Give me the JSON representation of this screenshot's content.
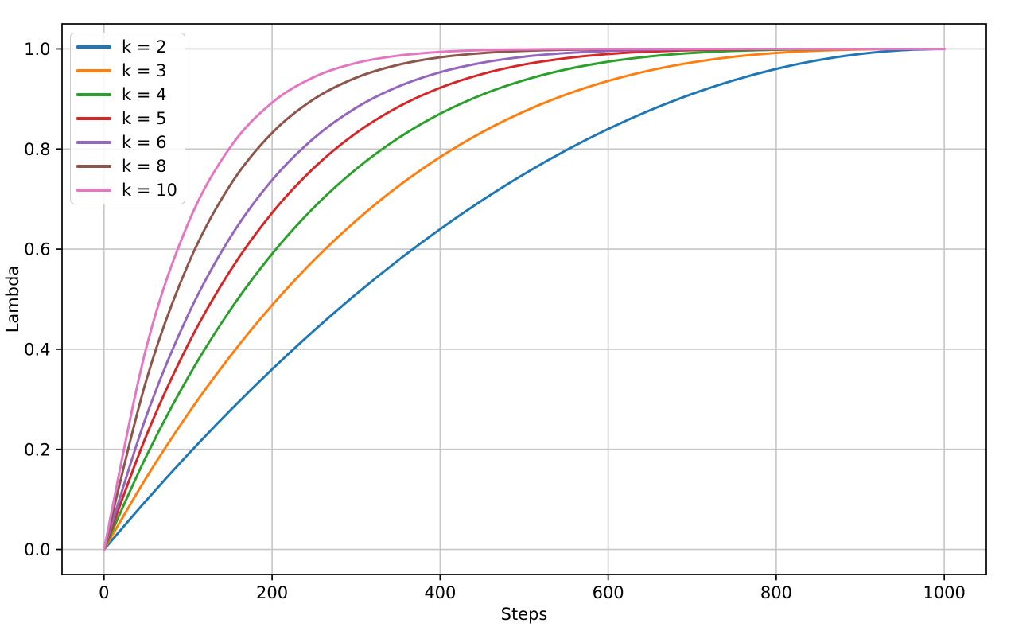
{
  "chart_data": {
    "type": "line",
    "title": "",
    "xlabel": "Steps",
    "ylabel": "Lambda",
    "xlim": [
      -50,
      1050
    ],
    "ylim": [
      -0.05,
      1.05
    ],
    "grid": true,
    "grid_color": "#c6c6c6",
    "spine_color": "#000000",
    "legend_position": "upper left",
    "formula": "lambda(t) = 1 - (1 - t/1000)^k",
    "xticks": {
      "values": [
        0,
        200,
        400,
        600,
        800,
        1000
      ],
      "labels": [
        "0",
        "200",
        "400",
        "600",
        "800",
        "1000"
      ]
    },
    "yticks": {
      "values": [
        0.0,
        0.2,
        0.4,
        0.6,
        0.8,
        1.0
      ],
      "labels": [
        "0.0",
        "0.2",
        "0.4",
        "0.6",
        "0.8",
        "1.0"
      ]
    },
    "x": [
      0,
      50,
      100,
      150,
      200,
      250,
      300,
      350,
      400,
      450,
      500,
      550,
      600,
      650,
      700,
      750,
      800,
      850,
      900,
      950,
      1000
    ],
    "series": [
      {
        "name": "k = 2",
        "k": 2,
        "color": "#1f77b4",
        "values": [
          0,
          0.0975,
          0.19,
          0.2775,
          0.36,
          0.4375,
          0.51,
          0.5775,
          0.64,
          0.6975,
          0.75,
          0.7975,
          0.84,
          0.8775,
          0.91,
          0.9375,
          0.96,
          0.9775,
          0.99,
          0.9975,
          1.0
        ]
      },
      {
        "name": "k = 3",
        "k": 3,
        "color": "#ff7f0e",
        "values": [
          0,
          0.1426,
          0.271,
          0.3859,
          0.488,
          0.5781,
          0.657,
          0.7254,
          0.784,
          0.8336,
          0.875,
          0.9089,
          0.936,
          0.9571,
          0.973,
          0.9844,
          0.992,
          0.9966,
          0.999,
          0.9999,
          1.0
        ]
      },
      {
        "name": "k = 4",
        "k": 4,
        "color": "#2ca02c",
        "values": [
          0,
          0.1855,
          0.3439,
          0.478,
          0.5904,
          0.6836,
          0.7599,
          0.8215,
          0.8704,
          0.9085,
          0.9375,
          0.959,
          0.9744,
          0.985,
          0.9919,
          0.9961,
          0.9984,
          0.9995,
          0.9999,
          1.0,
          1.0
        ]
      },
      {
        "name": "k = 5",
        "k": 5,
        "color": "#d62728",
        "values": [
          0,
          0.2262,
          0.4095,
          0.5563,
          0.6723,
          0.7627,
          0.8319,
          0.884,
          0.9222,
          0.9497,
          0.9688,
          0.9815,
          0.9898,
          0.9947,
          0.9976,
          0.999,
          0.9997,
          0.9999,
          1.0,
          1.0,
          1.0
        ]
      },
      {
        "name": "k = 6",
        "k": 6,
        "color": "#9467bd",
        "values": [
          0,
          0.2649,
          0.4686,
          0.6229,
          0.7379,
          0.822,
          0.8824,
          0.9246,
          0.9533,
          0.9723,
          0.9844,
          0.9917,
          0.9959,
          0.9982,
          0.9993,
          0.9998,
          0.9999,
          1.0,
          1.0,
          1.0,
          1.0
        ]
      },
      {
        "name": "k = 8",
        "k": 8,
        "color": "#8c564b",
        "values": [
          0,
          0.3366,
          0.5695,
          0.7275,
          0.8322,
          0.8999,
          0.9424,
          0.9681,
          0.9832,
          0.9916,
          0.9961,
          0.9983,
          0.9993,
          0.9998,
          0.9999,
          1.0,
          1.0,
          1.0,
          1.0,
          1.0,
          1.0
        ]
      },
      {
        "name": "k = 10",
        "k": 10,
        "color": "#e377c2",
        "values": [
          0,
          0.4013,
          0.6513,
          0.8031,
          0.8926,
          0.9437,
          0.9718,
          0.9865,
          0.994,
          0.9975,
          0.999,
          0.9997,
          0.9999,
          1.0,
          1.0,
          1.0,
          1.0,
          1.0,
          1.0,
          1.0,
          1.0
        ]
      }
    ]
  }
}
